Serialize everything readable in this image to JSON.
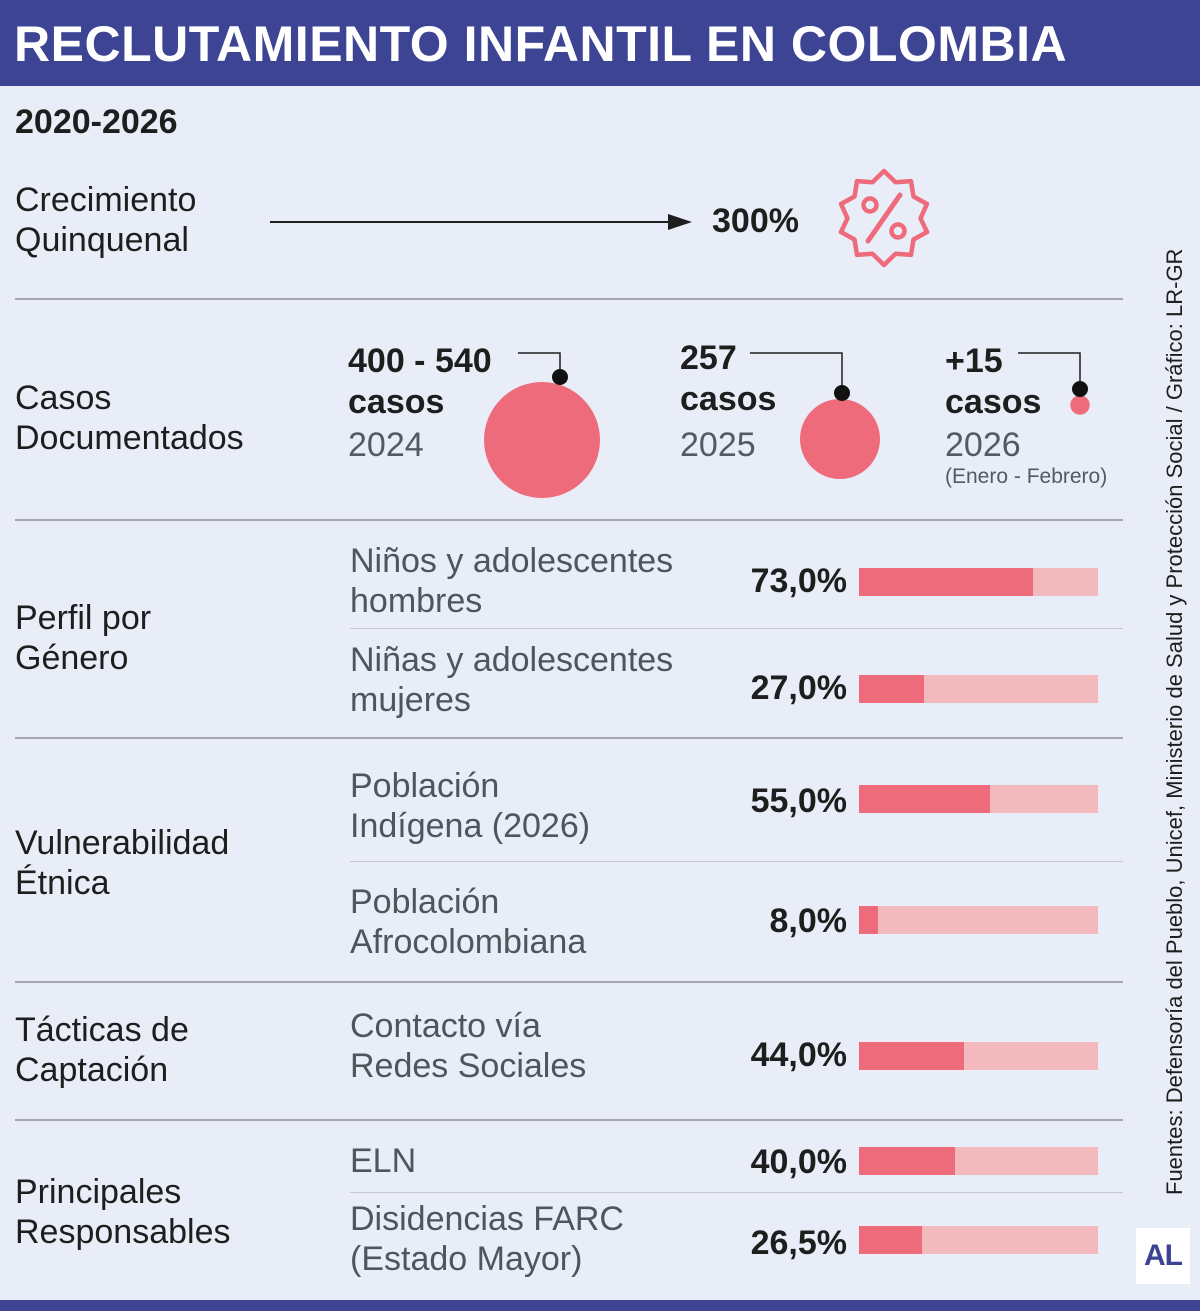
{
  "title": "RECLUTAMIENTO INFANTIL EN COLOMBIA",
  "period": "2020-2026",
  "colors": {
    "header": "#3d4493",
    "accent": "#ed6b7b",
    "accent_light": "#f2b9bf",
    "background": "#e8edf7"
  },
  "growth": {
    "label_line1": "Crecimiento",
    "label_line2": "Quinquenal",
    "value": "300%",
    "icon": "percent-badge-icon"
  },
  "cases": {
    "label_line1": "Casos",
    "label_line2": "Documentados",
    "items": [
      {
        "num": "400 - 540",
        "unit": "casos",
        "year": "2024",
        "note": "",
        "bubble_value": 540
      },
      {
        "num": "257",
        "unit": "casos",
        "year": "2025",
        "note": "",
        "bubble_value": 257
      },
      {
        "num": "+15",
        "unit": "casos",
        "year": "2026",
        "note": "(Enero - Febrero)",
        "bubble_value": 15
      }
    ]
  },
  "chart_data": {
    "type": "bar",
    "value_max": 100,
    "groups": [
      {
        "label_lines": [
          "Perfil por",
          "Género"
        ],
        "items": [
          {
            "label_lines": [
              "Niños y adolescentes",
              "hombres"
            ],
            "value": 73.0,
            "value_label": "73,0%"
          },
          {
            "label_lines": [
              "Niñas y adolescentes",
              "mujeres"
            ],
            "value": 27.0,
            "value_label": "27,0%"
          }
        ]
      },
      {
        "label_lines": [
          "Vulnerabilidad",
          "Étnica"
        ],
        "items": [
          {
            "label_lines": [
              "Población",
              "Indígena (2026)"
            ],
            "value": 55.0,
            "value_label": "55,0%"
          },
          {
            "label_lines": [
              "Población",
              "Afrocolombiana"
            ],
            "value": 8.0,
            "value_label": "8,0%"
          }
        ]
      },
      {
        "label_lines": [
          "Tácticas de",
          "Captación"
        ],
        "items": [
          {
            "label_lines": [
              "Contacto vía",
              "Redes Sociales"
            ],
            "value": 44.0,
            "value_label": "44,0%"
          }
        ]
      },
      {
        "label_lines": [
          "Principales",
          "Responsables"
        ],
        "items": [
          {
            "label_lines": [
              "ELN"
            ],
            "value": 40.0,
            "value_label": "40,0%"
          },
          {
            "label_lines": [
              "Disidencias FARC",
              "(Estado Mayor)"
            ],
            "value": 26.5,
            "value_label": "26,5%"
          }
        ]
      }
    ]
  },
  "source": "Fuentes: Defensoría del Pueblo, Unicef, Ministerio de Salud y Protección Social / Gráfico: LR-GR",
  "logo": "AL"
}
